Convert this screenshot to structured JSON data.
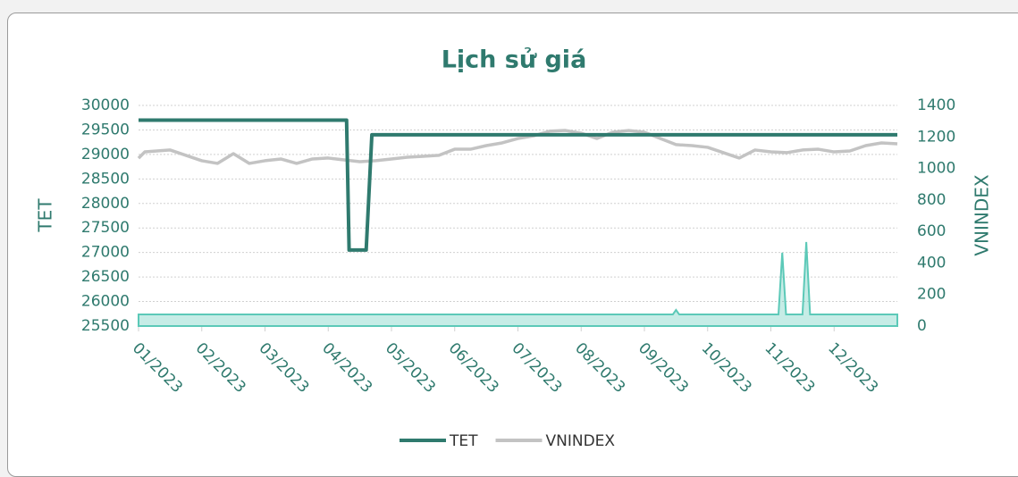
{
  "chart_data": {
    "type": "line",
    "title": "Lịch sử giá",
    "y_label": "TET",
    "y2_label": "VNINDEX",
    "xlim": [
      0,
      12
    ],
    "xticks": [
      {
        "value": 0,
        "label": "01/2023"
      },
      {
        "value": 1,
        "label": "02/2023"
      },
      {
        "value": 2,
        "label": "03/2023"
      },
      {
        "value": 3,
        "label": "04/2023"
      },
      {
        "value": 4,
        "label": "05/2023"
      },
      {
        "value": 5,
        "label": "06/2023"
      },
      {
        "value": 6,
        "label": "07/2023"
      },
      {
        "value": 7,
        "label": "08/2023"
      },
      {
        "value": 8,
        "label": "09/2023"
      },
      {
        "value": 9,
        "label": "10/2023"
      },
      {
        "value": 10,
        "label": "11/2023"
      },
      {
        "value": 11,
        "label": "12/2023"
      }
    ],
    "ylim": [
      25500,
      30000
    ],
    "yticks": [
      25500,
      26000,
      26500,
      27000,
      27500,
      28000,
      28500,
      29000,
      29500,
      30000
    ],
    "y2lim": [
      0,
      1400
    ],
    "y2ticks": [
      0,
      200,
      400,
      600,
      800,
      1000,
      1200,
      1400
    ],
    "grid": true,
    "legend": "bottom",
    "series": [
      {
        "name": "TET",
        "color": "#2f7a6e",
        "x": [
          0,
          3.29,
          3.33,
          3.6,
          3.69,
          12
        ],
        "values": [
          29700,
          29700,
          27050,
          27050,
          29400,
          29400
        ]
      },
      {
        "name": "VNINDEX",
        "color": "#c3c3c3",
        "axis": "y2",
        "x": [
          0,
          0.1,
          0.5,
          0.75,
          1,
          1.25,
          1.5,
          1.75,
          2,
          2.25,
          2.5,
          2.75,
          3,
          3.25,
          3.5,
          3.75,
          4,
          4.25,
          4.5,
          4.75,
          5,
          5.25,
          5.5,
          5.75,
          6,
          6.25,
          6.5,
          6.75,
          7,
          7.25,
          7.5,
          7.75,
          8,
          8.25,
          8.5,
          8.75,
          9,
          9.25,
          9.5,
          9.75,
          10,
          10.25,
          10.5,
          10.75,
          11,
          11.25,
          11.5,
          11.75,
          12
        ],
        "values": [
          1065,
          1105,
          1117,
          1083,
          1049,
          1032,
          1094,
          1032,
          1049,
          1060,
          1032,
          1060,
          1066,
          1054,
          1043,
          1049,
          1060,
          1071,
          1077,
          1083,
          1122,
          1122,
          1145,
          1162,
          1190,
          1207,
          1236,
          1241,
          1224,
          1190,
          1230,
          1241,
          1230,
          1190,
          1151,
          1145,
          1134,
          1100,
          1066,
          1117,
          1105,
          1100,
          1117,
          1122,
          1105,
          1111,
          1145,
          1162,
          1156
        ]
      },
      {
        "type": "area",
        "color": "#5cc9b8",
        "axis": "y2",
        "x": [
          0,
          8.45,
          8.5,
          8.55,
          10.12,
          10.18,
          10.24,
          10.5,
          10.56,
          10.62,
          12
        ],
        "values": [
          74,
          74,
          102,
          74,
          74,
          465,
          74,
          74,
          533,
          74,
          74
        ]
      }
    ]
  }
}
